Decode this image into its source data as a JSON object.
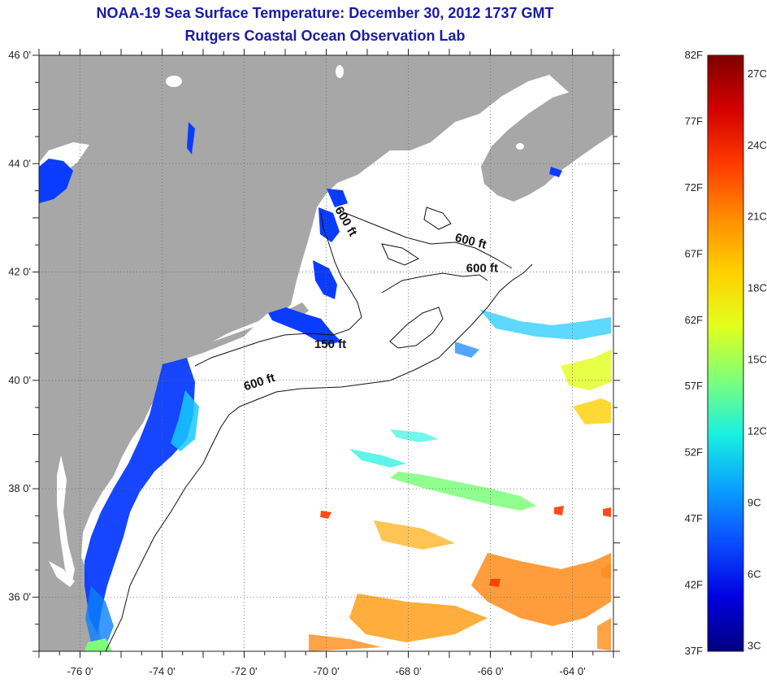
{
  "title": {
    "line1": "NOAA-19 Sea Surface Temperature:  December 30, 2012 1737 GMT",
    "line2": "Rutgers Coastal Ocean Observation Lab"
  },
  "axes": {
    "longitude_labels": [
      "-76 0'",
      "-74 0'",
      "-72 0'",
      "-70 0'",
      "-68 0'",
      "-66 0'",
      "-64 0'"
    ],
    "longitude_values": [
      -76,
      -74,
      -72,
      -70,
      -68,
      -66,
      -64
    ],
    "latitude_labels": [
      "46 0'",
      "44 0'",
      "42 0'",
      "40 0'",
      "38 0'",
      "36 0'"
    ],
    "latitude_values": [
      46,
      44,
      42,
      40,
      38,
      36
    ],
    "lon_range": [
      -77,
      -63
    ],
    "lat_range": [
      35,
      46
    ]
  },
  "contours": [
    {
      "label": "600 ft",
      "lon": -71.6,
      "lat": 39.9,
      "rotate": -18
    },
    {
      "label": "150 ft",
      "lon": -69.9,
      "lat": 40.6,
      "rotate": 0
    },
    {
      "label": "600 ft",
      "lon": -69.6,
      "lat": 42.9,
      "rotate": 60
    },
    {
      "label": "600 ft",
      "lon": -66.2,
      "lat": 42.0,
      "rotate": 0
    },
    {
      "label": "600 ft",
      "lon": -66.5,
      "lat": 42.5,
      "rotate": 14
    }
  ],
  "colorbar": {
    "fahrenheit": [
      "82F",
      "77F",
      "72F",
      "67F",
      "62F",
      "57F",
      "52F",
      "47F",
      "42F",
      "37F"
    ],
    "celsius": [
      "27C",
      "24C",
      "21C",
      "18C",
      "15C",
      "12C",
      "9C",
      "6C",
      "3C"
    ],
    "gradient": [
      "#7f0000",
      "#d40000",
      "#ff3a00",
      "#ff8c00",
      "#ffd000",
      "#e2ff1c",
      "#7dff7a",
      "#18f0e0",
      "#0aa0ff",
      "#0a4cff",
      "#0000e0",
      "#00007f"
    ]
  },
  "colors": {
    "land": "#a7a7a7",
    "water": "#ffffff",
    "cold": "#0a3cff",
    "warm": "#ff8c1a"
  }
}
